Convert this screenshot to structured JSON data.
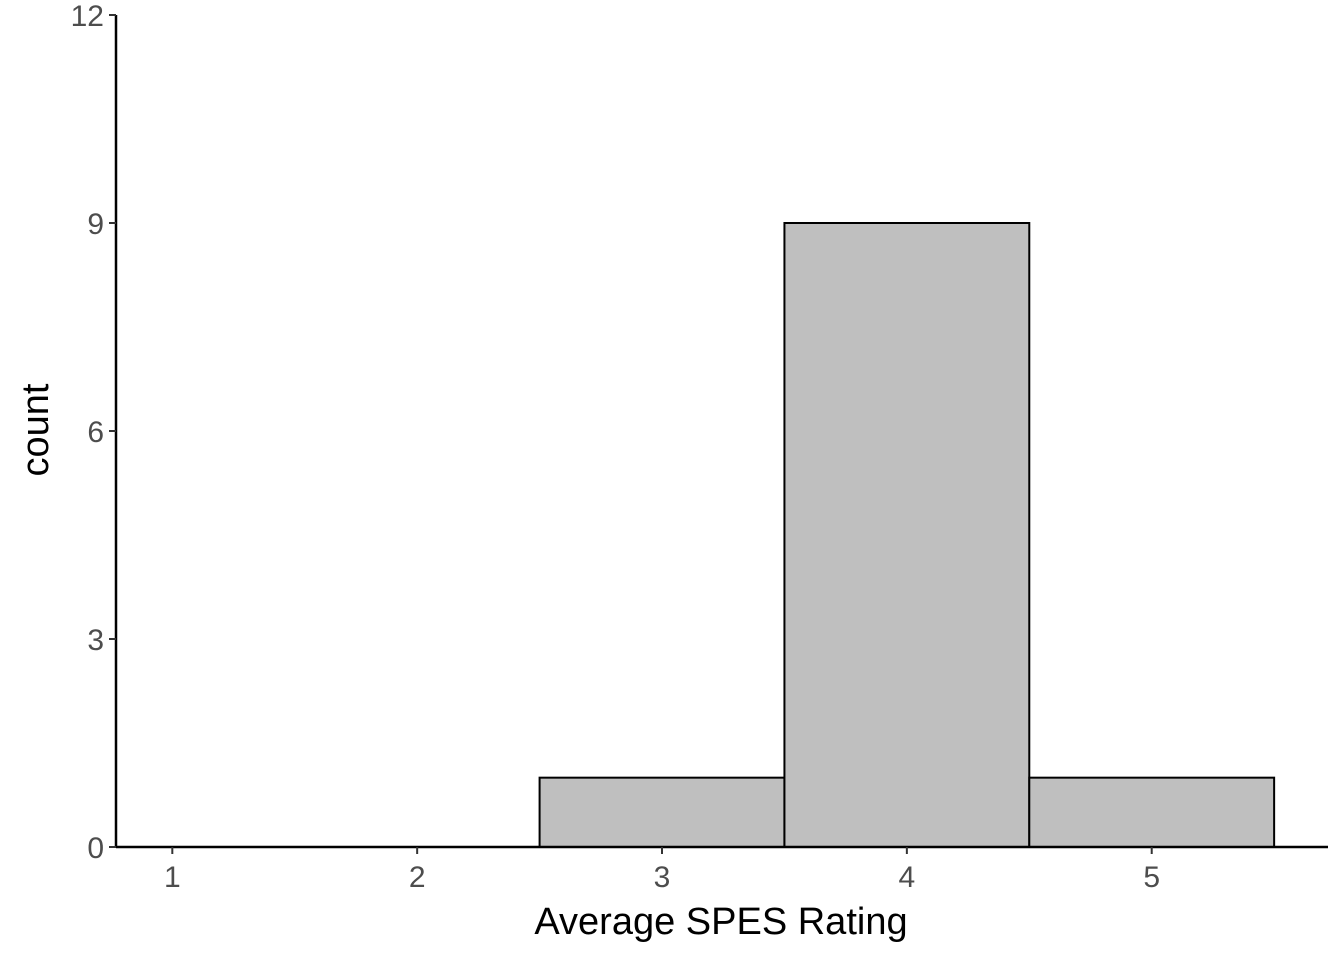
{
  "chart_data": {
    "type": "bar",
    "title": "",
    "xlabel": "Average SPES Rating",
    "ylabel": "count",
    "x_ticks": [
      "1",
      "2",
      "3",
      "4",
      "5"
    ],
    "y_ticks": [
      "0",
      "3",
      "6",
      "9",
      "12"
    ],
    "xlim": [
      0.77,
      5.72
    ],
    "ylim": [
      0,
      12
    ],
    "bins": [
      {
        "x0": 2.5,
        "x1": 3.5,
        "count": 1
      },
      {
        "x0": 3.5,
        "x1": 4.5,
        "count": 9
      },
      {
        "x0": 4.5,
        "x1": 5.5,
        "count": 1
      }
    ],
    "bar_fill": "#bfbfbf",
    "bar_stroke": "#000000",
    "grid": false,
    "legend": "none"
  }
}
